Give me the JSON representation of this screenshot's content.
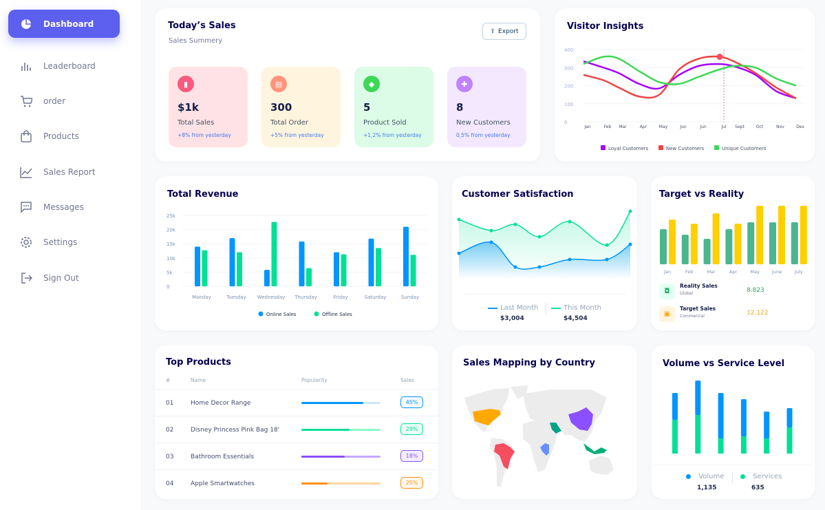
{
  "sidebar": {
    "items": [
      {
        "label": "Dashboard",
        "icon": "pie-chart-icon",
        "active": true
      },
      {
        "label": "Leaderboard",
        "icon": "bar-chart-icon"
      },
      {
        "label": "order",
        "icon": "cart-icon"
      },
      {
        "label": "Products",
        "icon": "shopping-bag-icon"
      },
      {
        "label": "Sales Report",
        "icon": "line-chart-icon"
      },
      {
        "label": "Messages",
        "icon": "message-icon"
      },
      {
        "label": "Settings",
        "icon": "gear-icon"
      },
      {
        "label": "Sign Out",
        "icon": "sign-out-icon"
      }
    ]
  },
  "today": {
    "title": "Today’s Sales",
    "subtitle": "Sales Summery",
    "export": "Export",
    "cards": [
      {
        "value": "$1k",
        "label": "Total Sales",
        "change": "+8% from yesterday",
        "bg": "#ffe2e5",
        "icon_bg": "#fa5a7d",
        "icon": "chart-icon"
      },
      {
        "value": "300",
        "label": "Total Order",
        "change": "+5% from yesterday",
        "bg": "#fff4de",
        "icon_bg": "#ff947a",
        "icon": "document-icon"
      },
      {
        "value": "5",
        "label": "Product Sold",
        "change": "+1,2% from yesterday",
        "bg": "#dcfce7",
        "icon_bg": "#3cd856",
        "icon": "tag-icon"
      },
      {
        "value": "8",
        "label": "New Customers",
        "change": "0,5% from yesterday",
        "bg": "#f3e8ff",
        "icon_bg": "#bf83ff",
        "icon": "add-user-icon"
      }
    ]
  },
  "visitor": {
    "title": "Visitor Insights"
  },
  "revenue": {
    "title": "Total Revenue"
  },
  "satisfaction": {
    "title": "Customer Satisfaction",
    "last_label": "Last Month",
    "last_value": "$3,004",
    "this_label": "This Month",
    "this_value": "$4,504"
  },
  "target": {
    "title": "Target vs Reality",
    "rows": [
      {
        "label": "Reality Sales",
        "sub": "Global",
        "value": "8.823",
        "color": "#27ae60"
      },
      {
        "label": "Target Sales",
        "sub": "Commercial",
        "value": "12.122",
        "color": "#ffa412"
      }
    ]
  },
  "products": {
    "title": "Top Products",
    "headers": [
      "#",
      "Name",
      "Popularity",
      "Sales"
    ],
    "rows": [
      {
        "n": "01",
        "name": "Home Decor Range",
        "pop": 0.78,
        "sales": "45%",
        "color": "#0095ff",
        "light": "#cde7ff"
      },
      {
        "n": "02",
        "name": "Disney Princess Pink Bag 18'",
        "pop": 0.61,
        "sales": "29%",
        "color": "#00e096",
        "light": "#8cfac7"
      },
      {
        "n": "03",
        "name": "Bathroom Essentials",
        "pop": 0.55,
        "sales": "18%",
        "color": "#884dff",
        "light": "#c5a8ff"
      },
      {
        "n": "04",
        "name": "Apple Smartwatches",
        "pop": 0.33,
        "sales": "25%",
        "color": "#ff8f0d",
        "light": "#ffd5a4"
      }
    ]
  },
  "map": {
    "title": "Sales Mapping by Country",
    "highlight_colors": {
      "usa": "#ffa800",
      "brazil": "#f64e60",
      "china": "#8b50ff",
      "saudi_arabia": "#00a389",
      "congo": "#6690ff",
      "indonesia": "#00b074"
    }
  },
  "volume": {
    "title": "Volume vs Service Level",
    "volume_label": "Volume",
    "volume_value": "1,135",
    "services_label": "Services",
    "services_value": "635"
  },
  "chart_data": [
    {
      "type": "line",
      "ylim": [
        0,
        400
      ],
      "yticks": [
        "0",
        "100",
        "200",
        "300",
        "400"
      ],
      "categories": [
        "Jan",
        "Feb",
        "Mar",
        "Apr",
        "May",
        "Jun",
        "Jun",
        "Jul",
        "Sept",
        "Oct",
        "Nov",
        "Des"
      ],
      "series": [
        {
          "name": "Loyal Customers",
          "color": "#a700ff",
          "values": [
            335,
            300,
            270,
            210,
            185,
            260,
            310,
            320,
            305,
            260,
            170,
            130
          ]
        },
        {
          "name": "New Customers",
          "color": "#ef4444",
          "values": [
            260,
            230,
            190,
            140,
            150,
            290,
            350,
            360,
            330,
            270,
            190,
            130
          ]
        },
        {
          "name": "Unique Customers",
          "color": "#3cd856",
          "values": [
            320,
            360,
            350,
            280,
            220,
            210,
            250,
            290,
            310,
            300,
            240,
            200
          ]
        }
      ],
      "highlight": {
        "series": "New Customers",
        "category": "Jul"
      },
      "legend": "bottom"
    },
    {
      "type": "bar",
      "ylim": [
        0,
        25000
      ],
      "yticks": [
        "0",
        "5k",
        "10k",
        "15k",
        "20k",
        "25k"
      ],
      "categories": [
        "Monday",
        "Tuesday",
        "Wednesday",
        "Thursday",
        "Friday",
        "Saturday",
        "Sunday"
      ],
      "series": [
        {
          "name": "Online Sales",
          "color": "#0095ff",
          "values": [
            14000,
            17000,
            5800,
            15800,
            12000,
            16800,
            21000
          ]
        },
        {
          "name": "Offline Sales",
          "color": "#00e096",
          "values": [
            12700,
            12000,
            22700,
            6400,
            11300,
            13500,
            11100
          ]
        }
      ],
      "legend": "bottom"
    },
    {
      "type": "area",
      "ylim": [
        0,
        110
      ],
      "series": [
        {
          "name": "Last Month",
          "color": "#0095ff",
          "values": [
            37,
            53,
            17,
            17,
            28,
            28,
            50
          ]
        },
        {
          "name": "This Month",
          "color": "#07e098",
          "values": [
            86,
            70,
            79,
            61,
            83,
            49,
            98
          ]
        }
      ]
    },
    {
      "type": "bar",
      "ylim": [
        0,
        90
      ],
      "categories": [
        "Jan",
        "Feb",
        "Mar",
        "Apr",
        "May",
        "June",
        "July"
      ],
      "series": [
        {
          "name": "Reality Sales",
          "color": "#4ab58e",
          "values": [
            51,
            43,
            37,
            51,
            61,
            61,
            61
          ]
        },
        {
          "name": "Target Sales",
          "color": "#ffcf00",
          "values": [
            65,
            59,
            74,
            59,
            85,
            85,
            85
          ]
        }
      ]
    },
    {
      "type": "bar",
      "stacked": true,
      "ylim": [
        0,
        110
      ],
      "series": [
        {
          "name": "Services",
          "color": "#00e096",
          "values": [
            49,
            56,
            22,
            25,
            22,
            38
          ]
        },
        {
          "name": "Volume",
          "color": "#0095ff",
          "values": [
            39,
            50,
            66,
            54,
            39,
            28
          ]
        }
      ]
    }
  ]
}
